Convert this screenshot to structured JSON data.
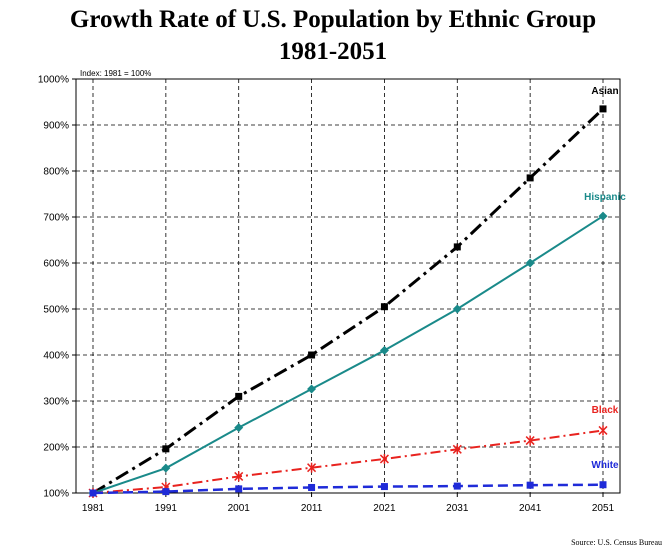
{
  "title_line1": "Growth Rate of U.S. Population by Ethnic Group",
  "title_line2": "1981-2051",
  "index_note": "Index: 1981 = 100%",
  "source_note": "Source: U.S. Census Bureau",
  "chart_data": {
    "type": "line",
    "x": [
      1981,
      1991,
      2001,
      2011,
      2021,
      2031,
      2041,
      2051
    ],
    "x_tick_labels": [
      "1981",
      "1991",
      "2001",
      "2011",
      "2021",
      "2031",
      "2041",
      "2051"
    ],
    "ylim": [
      100,
      1000
    ],
    "y_ticks": [
      100,
      200,
      300,
      400,
      500,
      600,
      700,
      800,
      900,
      1000
    ],
    "y_tick_labels": [
      "100%",
      "200%",
      "300%",
      "400%",
      "500%",
      "600%",
      "700%",
      "800%",
      "900%",
      "1000%"
    ],
    "grid": true,
    "series": [
      {
        "name": "Asian",
        "color": "#000000",
        "marker": "square",
        "values": [
          100,
          196,
          310,
          400,
          505,
          635,
          785,
          935
        ]
      },
      {
        "name": "Hispanic",
        "color": "#1a8a8a",
        "marker": "diamond",
        "values": [
          100,
          154,
          242,
          326,
          410,
          500,
          600,
          702
        ]
      },
      {
        "name": "Black",
        "color": "#e8231f",
        "marker": "x",
        "values": [
          100,
          113,
          136,
          155,
          174,
          195,
          214,
          236
        ]
      },
      {
        "name": "White",
        "color": "#1f2bd8",
        "marker": "square",
        "values": [
          100,
          103,
          109,
          112,
          114,
          115,
          117,
          118
        ]
      }
    ]
  }
}
